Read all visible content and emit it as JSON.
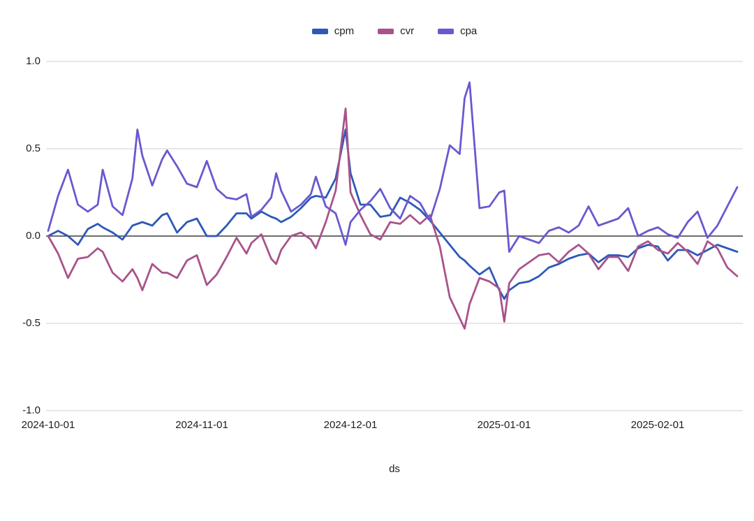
{
  "legend": [
    {
      "label": "cpm",
      "color": "#2e58b8"
    },
    {
      "label": "cvr",
      "color": "#a8538a"
    },
    {
      "label": "cpa",
      "color": "#6859d0"
    }
  ],
  "axes": {
    "y_tick_labels": [
      "1.0",
      "0.5",
      "0.0",
      "-0.5",
      "-1.0"
    ],
    "x_tick_labels": [
      "2024-10-01",
      "2024-11-01",
      "2024-12-01",
      "2025-01-01",
      "2025-02-01"
    ],
    "x_axis_label": "ds"
  },
  "chart_data": {
    "type": "line",
    "title": "",
    "xlabel": "ds",
    "ylabel": "",
    "ylim": [
      -1.0,
      1.0
    ],
    "yticks": [
      1.0,
      0.5,
      0.0,
      -0.5,
      -1.0
    ],
    "xticks": [
      "2024-10-01",
      "2024-11-01",
      "2024-12-01",
      "2025-01-01",
      "2025-02-01"
    ],
    "grid": true,
    "legend_position": "top",
    "zero_line": true,
    "grid_color": "#cfcfcf",
    "zero_line_color": "#3d3d3d",
    "x": [
      "2024-10-01",
      "2024-10-03",
      "2024-10-05",
      "2024-10-07",
      "2024-10-09",
      "2024-10-11",
      "2024-10-12",
      "2024-10-14",
      "2024-10-16",
      "2024-10-18",
      "2024-10-19",
      "2024-10-20",
      "2024-10-22",
      "2024-10-24",
      "2024-10-25",
      "2024-10-27",
      "2024-10-29",
      "2024-10-31",
      "2024-11-02",
      "2024-11-04",
      "2024-11-06",
      "2024-11-08",
      "2024-11-10",
      "2024-11-11",
      "2024-11-13",
      "2024-11-15",
      "2024-11-16",
      "2024-11-17",
      "2024-11-19",
      "2024-11-21",
      "2024-11-23",
      "2024-11-24",
      "2024-11-26",
      "2024-11-28",
      "2024-11-30",
      "2024-12-01",
      "2024-12-03",
      "2024-12-05",
      "2024-12-07",
      "2024-12-09",
      "2024-12-11",
      "2024-12-13",
      "2024-12-15",
      "2024-12-17",
      "2024-12-19",
      "2024-12-21",
      "2024-12-23",
      "2024-12-24",
      "2024-12-25",
      "2024-12-27",
      "2024-12-29",
      "2024-12-31",
      "2025-01-01",
      "2025-01-02",
      "2025-01-04",
      "2025-01-06",
      "2025-01-08",
      "2025-01-10",
      "2025-01-12",
      "2025-01-14",
      "2025-01-16",
      "2025-01-18",
      "2025-01-20",
      "2025-01-22",
      "2025-01-24",
      "2025-01-26",
      "2025-01-28",
      "2025-01-30",
      "2025-02-01",
      "2025-02-03",
      "2025-02-05",
      "2025-02-07",
      "2025-02-09",
      "2025-02-11",
      "2025-02-13",
      "2025-02-15",
      "2025-02-17"
    ],
    "series": [
      {
        "name": "cpm",
        "color": "#2e58b8",
        "values": [
          0.0,
          0.03,
          0.0,
          -0.05,
          0.04,
          0.07,
          0.05,
          0.02,
          -0.02,
          0.06,
          0.07,
          0.08,
          0.06,
          0.12,
          0.13,
          0.02,
          0.08,
          0.1,
          0.0,
          0.0,
          0.06,
          0.13,
          0.13,
          0.1,
          0.14,
          0.11,
          0.1,
          0.08,
          0.11,
          0.16,
          0.22,
          0.23,
          0.22,
          0.33,
          0.61,
          0.36,
          0.18,
          0.18,
          0.11,
          0.12,
          0.22,
          0.19,
          0.15,
          0.09,
          0.02,
          -0.05,
          -0.12,
          -0.14,
          -0.17,
          -0.22,
          -0.18,
          -0.31,
          -0.36,
          -0.31,
          -0.27,
          -0.26,
          -0.23,
          -0.18,
          -0.16,
          -0.13,
          -0.11,
          -0.1,
          -0.15,
          -0.11,
          -0.11,
          -0.12,
          -0.07,
          -0.05,
          -0.06,
          -0.14,
          -0.08,
          -0.08,
          -0.11,
          -0.08,
          -0.05,
          -0.07,
          -0.09
        ]
      },
      {
        "name": "cvr",
        "color": "#a8538a",
        "values": [
          0.0,
          -0.1,
          -0.24,
          -0.13,
          -0.12,
          -0.07,
          -0.09,
          -0.21,
          -0.26,
          -0.19,
          -0.24,
          -0.31,
          -0.16,
          -0.21,
          -0.21,
          -0.24,
          -0.14,
          -0.11,
          -0.28,
          -0.22,
          -0.12,
          -0.01,
          -0.1,
          -0.04,
          0.01,
          -0.13,
          -0.16,
          -0.08,
          0.0,
          0.02,
          -0.02,
          -0.07,
          0.08,
          0.26,
          0.73,
          0.25,
          0.12,
          0.01,
          -0.02,
          0.08,
          0.07,
          0.12,
          0.07,
          0.12,
          -0.06,
          -0.35,
          -0.47,
          -0.53,
          -0.39,
          -0.24,
          -0.26,
          -0.3,
          -0.49,
          -0.27,
          -0.19,
          -0.15,
          -0.11,
          -0.1,
          -0.15,
          -0.09,
          -0.05,
          -0.1,
          -0.19,
          -0.12,
          -0.12,
          -0.2,
          -0.06,
          -0.03,
          -0.08,
          -0.1,
          -0.04,
          -0.09,
          -0.16,
          -0.03,
          -0.07,
          -0.18,
          -0.23
        ]
      },
      {
        "name": "cpa",
        "color": "#6859d0",
        "values": [
          0.03,
          0.23,
          0.38,
          0.18,
          0.14,
          0.18,
          0.38,
          0.17,
          0.12,
          0.33,
          0.61,
          0.46,
          0.29,
          0.44,
          0.49,
          0.4,
          0.3,
          0.28,
          0.43,
          0.27,
          0.22,
          0.21,
          0.24,
          0.11,
          0.15,
          0.22,
          0.36,
          0.26,
          0.14,
          0.18,
          0.24,
          0.34,
          0.17,
          0.13,
          -0.05,
          0.08,
          0.15,
          0.2,
          0.27,
          0.16,
          0.1,
          0.23,
          0.19,
          0.09,
          0.27,
          0.52,
          0.47,
          0.79,
          0.88,
          0.16,
          0.17,
          0.25,
          0.26,
          -0.09,
          0.0,
          -0.02,
          -0.04,
          0.03,
          0.05,
          0.02,
          0.06,
          0.17,
          0.06,
          0.08,
          0.1,
          0.16,
          0.0,
          0.03,
          0.05,
          0.01,
          -0.01,
          0.08,
          0.14,
          -0.01,
          0.06,
          0.17,
          0.28
        ]
      }
    ]
  }
}
